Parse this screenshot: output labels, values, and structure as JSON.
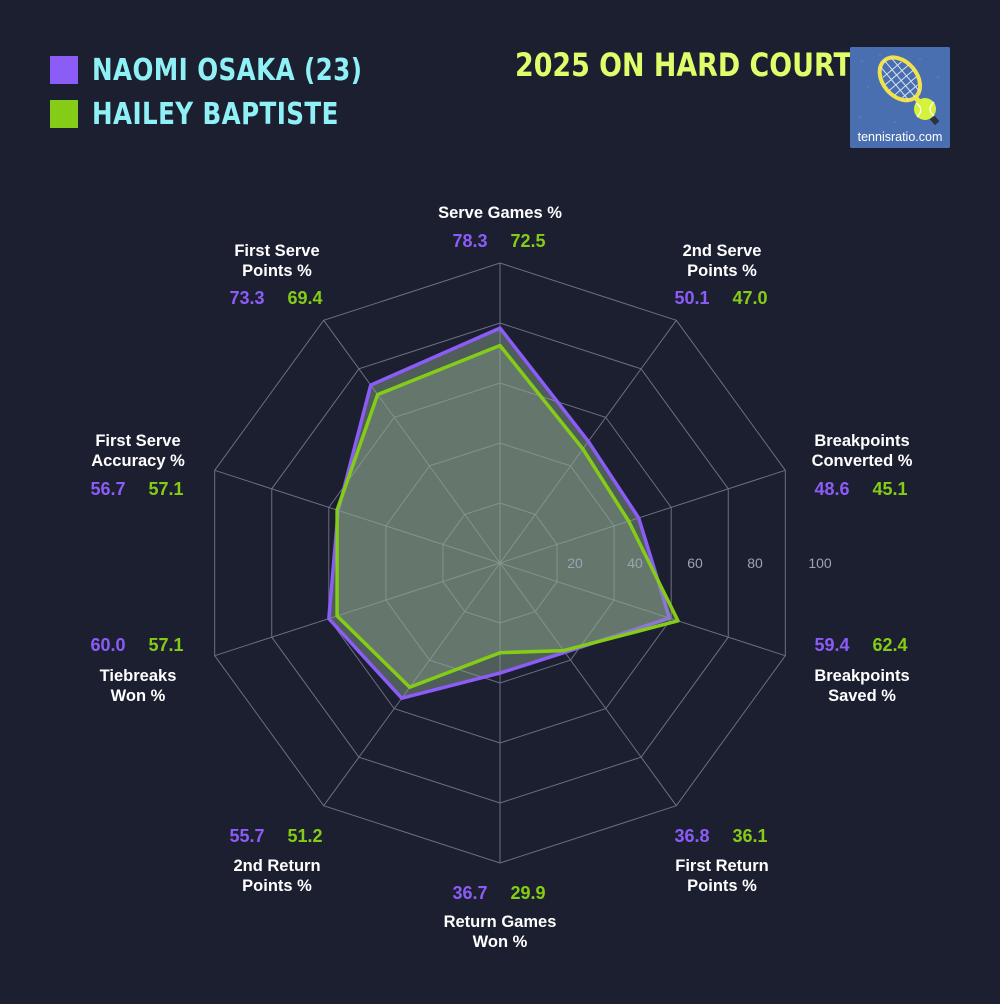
{
  "legend": [
    {
      "label": "NAOMI OSAKA (23)",
      "color": "#8b5cf6"
    },
    {
      "label": "HAILEY BAPTISTE",
      "color": "#84cc16"
    }
  ],
  "title": "2025 ON HARD COURTS",
  "logo": {
    "text": "tennisratio.com",
    "icon": "tennis-racket-ball-icon"
  },
  "colors": {
    "background": "#1c1f30",
    "series1": "#8b5cf6",
    "series2": "#84cc16",
    "label": "#ffffff",
    "grid": "#6b6f82",
    "ticks": "#9ea2b3"
  },
  "chart_data": {
    "type": "radar",
    "range": [
      0,
      100
    ],
    "ticks": [
      "20",
      "40",
      "60",
      "80",
      "100"
    ],
    "categories": [
      [
        "Serve Games %"
      ],
      [
        "2nd Serve",
        "Points %"
      ],
      [
        "Breakpoints",
        "Converted %"
      ],
      [
        "Breakpoints",
        "Saved %"
      ],
      [
        "First Return",
        "Points %"
      ],
      [
        "Return Games",
        "Won %"
      ],
      [
        "2nd Return",
        "Points %"
      ],
      [
        "Tiebreaks",
        "Won %"
      ],
      [
        "First Serve",
        "Accuracy %"
      ],
      [
        "First Serve",
        "Points %"
      ]
    ],
    "series": [
      {
        "name": "NAOMI OSAKA (23)",
        "values": [
          78.3,
          50.1,
          48.6,
          59.4,
          36.8,
          36.7,
          55.7,
          60.0,
          56.7,
          73.3
        ]
      },
      {
        "name": "HAILEY BAPTISTE",
        "values": [
          72.5,
          47.0,
          45.1,
          62.4,
          36.1,
          29.9,
          51.2,
          57.1,
          57.1,
          69.4
        ]
      }
    ],
    "value_labels": [
      [
        "78.3",
        "72.5"
      ],
      [
        "50.1",
        "47.0"
      ],
      [
        "48.6",
        "45.1"
      ],
      [
        "59.4",
        "62.4"
      ],
      [
        "36.8",
        "36.1"
      ],
      [
        "36.7",
        "29.9"
      ],
      [
        "55.7",
        "51.2"
      ],
      [
        "60.0",
        "57.1"
      ],
      [
        "56.7",
        "57.1"
      ],
      [
        "73.3",
        "69.4"
      ]
    ]
  }
}
